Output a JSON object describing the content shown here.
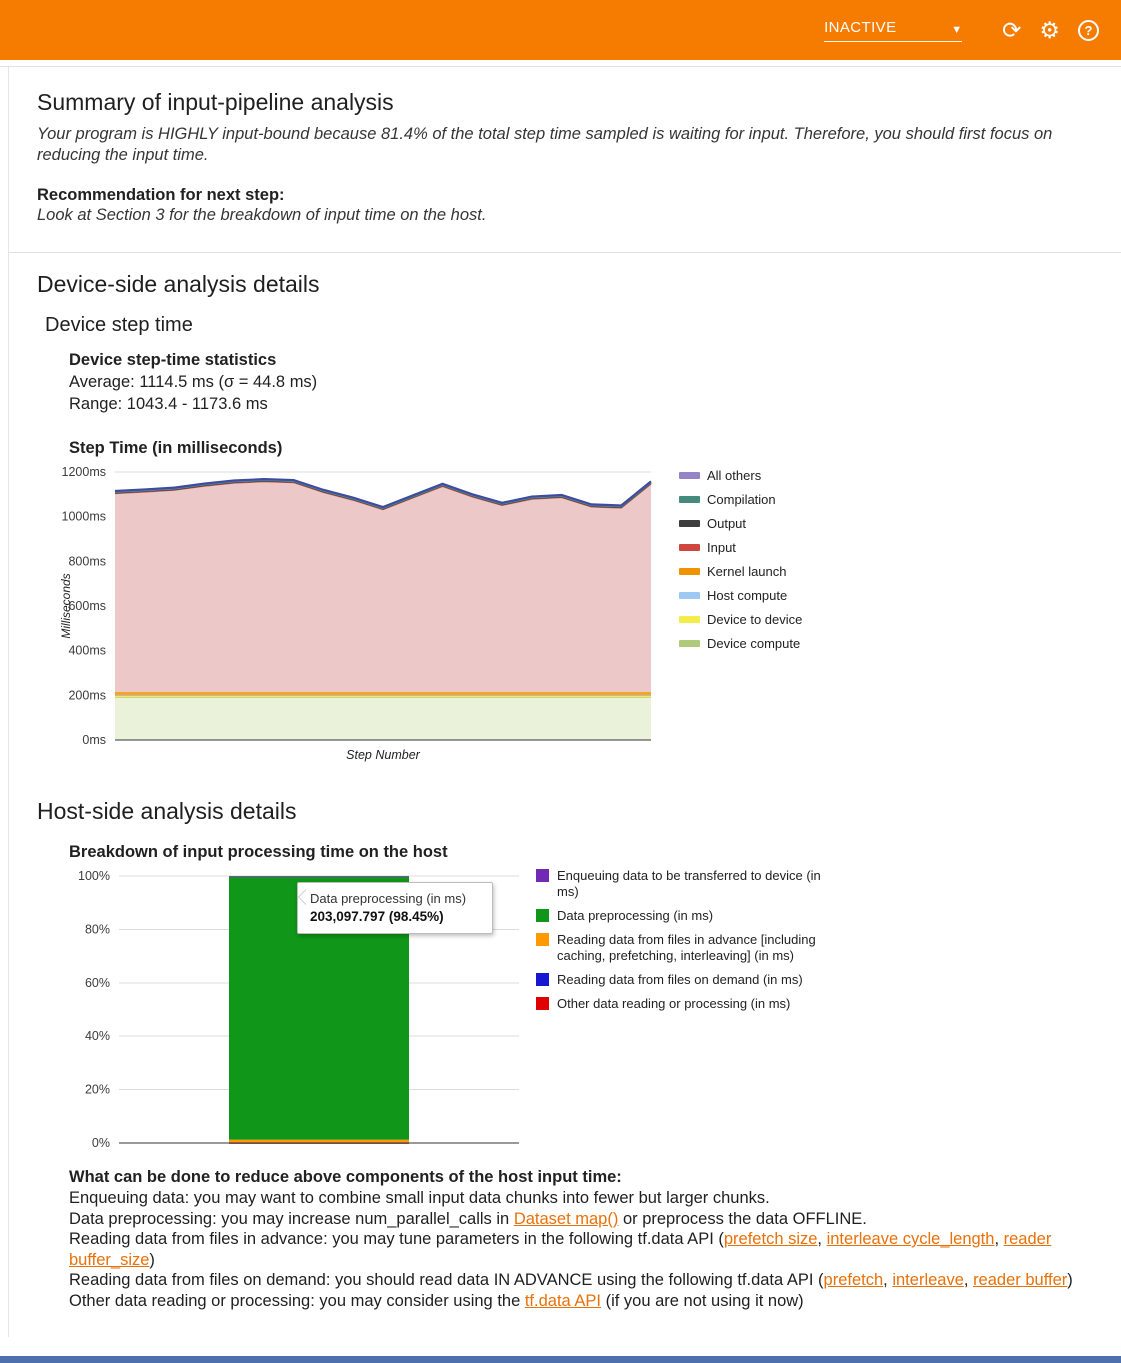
{
  "header": {
    "run_status": "INACTIVE"
  },
  "summary": {
    "title": "Summary of input-pipeline analysis",
    "body": "Your program is HIGHLY input-bound because 81.4% of the total step time sampled is waiting for input. Therefore, you should first focus on reducing the input time.",
    "recommendation_label": "Recommendation for next step:",
    "recommendation_body": "Look at Section 3 for the breakdown of input time on the host."
  },
  "device_section": {
    "title": "Device-side analysis details",
    "subtitle": "Device step time",
    "stats_title": "Device step-time statistics",
    "stats_average": "Average: 1114.5 ms (σ = 44.8 ms)",
    "stats_range": "Range: 1043.4 - 1173.6 ms"
  },
  "host_section": {
    "title": "Host-side analysis details",
    "advice_title": "What can be done to reduce above components of the host input time:",
    "advice_lines": [
      [
        {
          "t": "Enqueuing data: you may want to combine small input data chunks into fewer but larger chunks."
        }
      ],
      [
        {
          "t": "Data preprocessing: you may increase num_parallel_calls in "
        },
        {
          "t": "Dataset map()",
          "link": true
        },
        {
          "t": " or preprocess the data OFFLINE."
        }
      ],
      [
        {
          "t": "Reading data from files in advance: you may tune parameters in the following tf.data API ("
        },
        {
          "t": "prefetch size",
          "link": true
        },
        {
          "t": ", "
        },
        {
          "t": "interleave cycle_length",
          "link": true
        },
        {
          "t": ", "
        },
        {
          "t": "reader buffer_size",
          "link": true
        },
        {
          "t": ")"
        }
      ],
      [
        {
          "t": "Reading data from files on demand: you should read data IN ADVANCE using the following tf.data API ("
        },
        {
          "t": "prefetch",
          "link": true
        },
        {
          "t": ", "
        },
        {
          "t": "interleave",
          "link": true
        },
        {
          "t": ", "
        },
        {
          "t": "reader buffer",
          "link": true
        },
        {
          "t": ")"
        }
      ],
      [
        {
          "t": "Other data reading or processing: you may consider using the "
        },
        {
          "t": "tf.data API",
          "link": true
        },
        {
          "t": " (if you are not using it now)"
        }
      ]
    ]
  },
  "chart_data": [
    {
      "type": "area",
      "title": "Step Time (in milliseconds)",
      "xlabel": "Step Number",
      "ylabel": "Milliseconds",
      "ylim": [
        0,
        1200
      ],
      "ytick_step": 200,
      "ytick_suffix": "ms",
      "grid": true,
      "legend_position": "right",
      "x_count": 19,
      "series": [
        {
          "name": "Device compute",
          "color": "#b5cc8a",
          "fill": "#eaf2da",
          "legend_color": "#aeca7a",
          "value": 192
        },
        {
          "name": "Device to device",
          "color": "#efe94e",
          "fill": "#f5f07a",
          "legend_color": "#f3ec49",
          "value": 6
        },
        {
          "name": "Host compute",
          "color": "#9fc8f2",
          "fill": "#9fc8f2",
          "legend_color": "#9fc8f2",
          "value": 2
        },
        {
          "name": "Kernel launch",
          "color": "#f09300",
          "fill": "#f6a623",
          "legend_color": "#f09300",
          "value": 14
        },
        {
          "name": "Input",
          "color": "#cf564f",
          "fill": "#ecc8c8",
          "legend_color": "#d0453e",
          "values": [
            890,
            897,
            905,
            923,
            937,
            943,
            939,
            895,
            860,
            818,
            870,
            922,
            875,
            837,
            865,
            872,
            830,
            825,
            933
          ]
        },
        {
          "name": "Output",
          "color": "#3d3d3d",
          "fill": "#3d3d3d",
          "legend_color": "#3d3d3d",
          "value": 3
        },
        {
          "name": "Compilation",
          "color": "#46897d",
          "fill": "#46897d",
          "legend_color": "#46897d",
          "value": 2
        },
        {
          "name": "All others",
          "color": "#3e4b9e",
          "fill": "#8e7cc3",
          "legend_color": "#9583c6",
          "value": 6
        }
      ]
    },
    {
      "type": "bar",
      "title": "Breakdown of input processing time on the host",
      "ylim": [
        0,
        100
      ],
      "ytick_step": 20,
      "ytick_suffix": "%",
      "grid": true,
      "legend_position": "right",
      "segments_bottom_up": [
        {
          "name": "Other data reading or processing (in ms)",
          "color": "#e10000",
          "value": 0.02
        },
        {
          "name": "Reading data from files on demand (in ms)",
          "color": "#1717d1",
          "value": 0.03
        },
        {
          "name": "Reading data from files in advance [including caching, prefetching, interleaving] (in ms)",
          "color": "#ff9900",
          "value": 1.2
        },
        {
          "name": "Data preprocessing (in ms)",
          "color": "#109618",
          "value": 98.45
        },
        {
          "name": "Enqueuing data to be transferred to device (in ms)",
          "color": "#722ab5",
          "value": 0.3
        }
      ],
      "legend": [
        {
          "label": "Enqueuing data to be transferred to device (in ms)",
          "color": "#722ab5"
        },
        {
          "label": "Data preprocessing (in ms)",
          "color": "#109618"
        },
        {
          "label": "Reading data from files in advance [including caching, prefetching, interleaving] (in ms)",
          "color": "#ff9900"
        },
        {
          "label": "Reading data from files on demand (in ms)",
          "color": "#1717d1"
        },
        {
          "label": "Other data reading or processing (in ms)",
          "color": "#e10000"
        }
      ],
      "tooltip": {
        "title": "Data preprocessing (in ms)",
        "value": "203,097.797 (98.45%)"
      }
    }
  ]
}
